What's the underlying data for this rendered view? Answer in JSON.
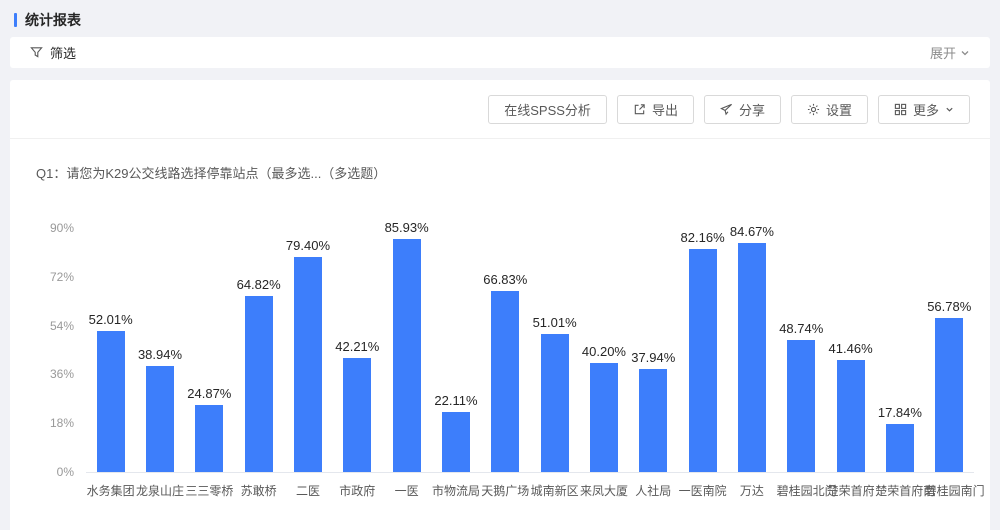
{
  "page": {
    "title": "统计报表"
  },
  "filter_bar": {
    "label": "筛选",
    "filter_icon": "funnel-icon",
    "expand_label": "展开",
    "expand_icon": "chevron-down-icon"
  },
  "toolbar": {
    "buttons": [
      {
        "label": "在线SPSS分析",
        "icon": "none"
      },
      {
        "label": "导出",
        "icon": "export-icon"
      },
      {
        "label": "分享",
        "icon": "share-icon"
      },
      {
        "label": "设置",
        "icon": "gear-icon"
      },
      {
        "label": "更多",
        "icon": "grid-icon",
        "suffix_icon": "chevron-down-icon"
      }
    ]
  },
  "question": {
    "title": "Q1：请您为K29公交线路选择停靠站点（最多选...（多选题）"
  },
  "chart_data": {
    "type": "bar",
    "title": "Q1：请您为K29公交线路选择停靠站点（最多选...（多选题）",
    "categories": [
      "水务集团",
      "龙泉山庄",
      "三三零桥",
      "苏敢桥",
      "二医",
      "市政府",
      "一医",
      "市物流局",
      "天鹅广场",
      "城南新区",
      "来凤大厦",
      "人社局",
      "一医南院",
      "万达",
      "碧桂园北门",
      "楚荣首府",
      "楚荣首府南",
      "碧桂园南门"
    ],
    "values": [
      52.01,
      38.94,
      24.87,
      64.82,
      79.4,
      42.21,
      85.93,
      22.11,
      66.83,
      51.01,
      40.2,
      37.94,
      82.16,
      84.67,
      48.74,
      41.46,
      17.84,
      56.78
    ],
    "value_labels": [
      "52.01%",
      "38.94%",
      "24.87%",
      "64.82%",
      "79.40%",
      "42.21%",
      "85.93%",
      "22.11%",
      "66.83%",
      "51.01%",
      "40.20%",
      "37.94%",
      "82.16%",
      "84.67%",
      "48.74%",
      "41.46%",
      "17.84%",
      "56.78%"
    ],
    "xlabel": "",
    "ylabel": "",
    "ylim": [
      0,
      90
    ],
    "yticks": [
      "0%",
      "18%",
      "36%",
      "54%",
      "72%",
      "90%"
    ],
    "ytick_values": [
      0,
      18,
      36,
      54,
      72,
      90
    ],
    "grid": false,
    "legend": "none",
    "bar_color": "#3d7efb"
  },
  "colors": {
    "accent": "#3d7efb",
    "page_background": "#f1f2f6",
    "panel_background": "#ffffff",
    "border": "#d9d9d9",
    "text_secondary": "#595959"
  }
}
